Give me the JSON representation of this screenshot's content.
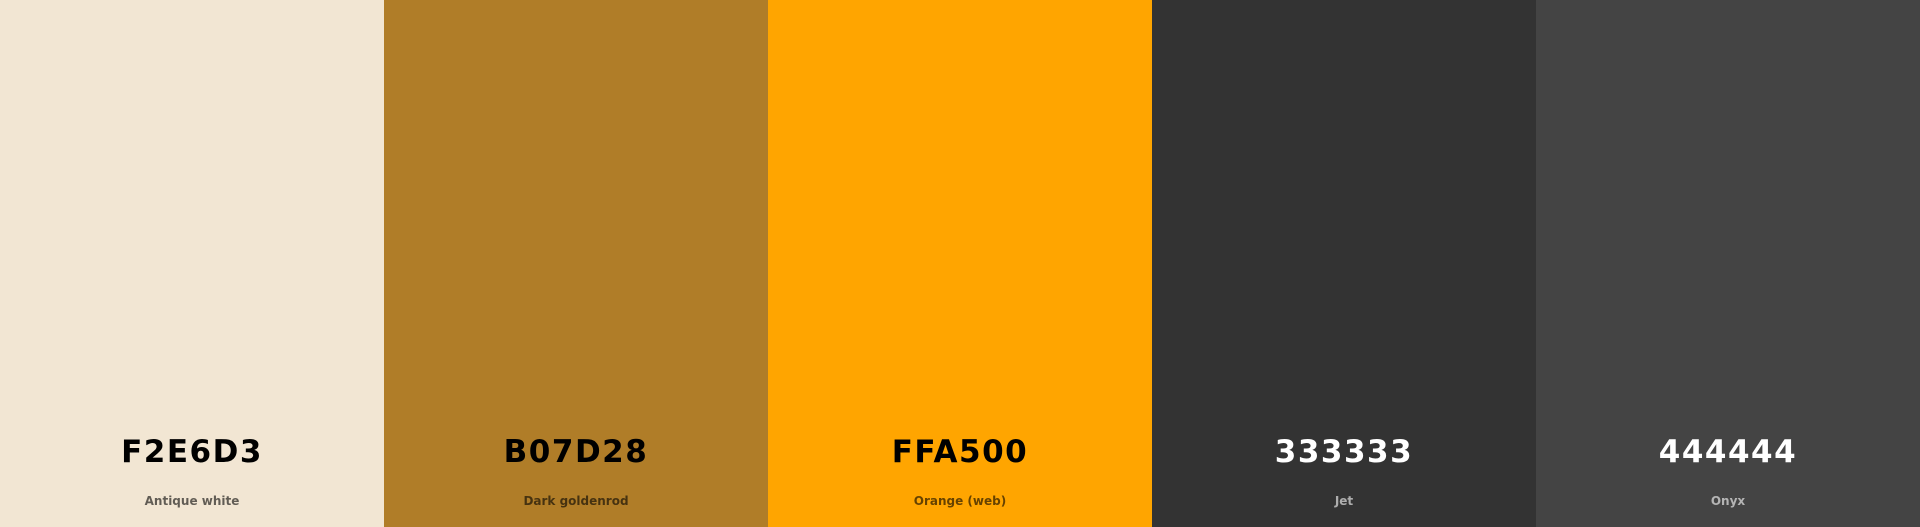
{
  "colors": [
    {
      "hex": "F2E6D3",
      "name": "Antique white",
      "color": "#F2E6D3",
      "text_theme": "dark"
    },
    {
      "hex": "B07D28",
      "name": "Dark goldenrod",
      "color": "#B07D28",
      "text_theme": "dark"
    },
    {
      "hex": "FFA500",
      "name": "Orange (web)",
      "color": "#FFA500",
      "text_theme": "dark"
    },
    {
      "hex": "333333",
      "name": "Jet",
      "color": "#333333",
      "text_theme": "light"
    },
    {
      "hex": "444444",
      "name": "Onyx",
      "color": "#444444",
      "text_theme": "light"
    }
  ]
}
